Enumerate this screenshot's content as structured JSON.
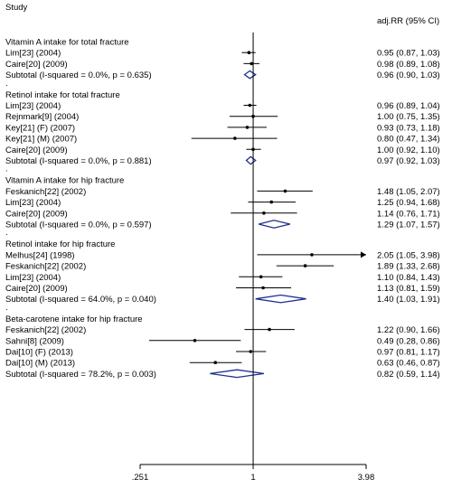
{
  "chart_data": {
    "type": "forest",
    "header_left": "Study",
    "header_right": "adj.RR (95% CI)",
    "x_scale": "log",
    "x_range": [
      0.251,
      3.98
    ],
    "x_ticks": [
      ".251",
      "1",
      "3.98"
    ],
    "null_line": 1,
    "groups": [
      {
        "title": "Vitamin A intake for total fracture",
        "studies": [
          {
            "label": "Lim[23] (2004)",
            "rr": 0.95,
            "lo": 0.87,
            "hi": 1.03,
            "text": "0.95 (0.87, 1.03)"
          },
          {
            "label": "Caire[20] (2009)",
            "rr": 0.98,
            "lo": 0.89,
            "hi": 1.08,
            "text": "0.98 (0.89, 1.08)"
          }
        ],
        "subtotal": {
          "label": "Subtotal  (I-squared = 0.0%, p = 0.635)",
          "rr": 0.96,
          "lo": 0.9,
          "hi": 1.03,
          "text": "0.96 (0.90, 1.03)"
        }
      },
      {
        "title": "Retinol intake for total fracture",
        "studies": [
          {
            "label": "Lim[23] (2004)",
            "rr": 0.96,
            "lo": 0.89,
            "hi": 1.04,
            "text": "0.96 (0.89, 1.04)"
          },
          {
            "label": "Rejnmark[9] (2004)",
            "rr": 1.0,
            "lo": 0.75,
            "hi": 1.35,
            "text": "1.00 (0.75, 1.35)"
          },
          {
            "label": "Key[21] (F) (2007)",
            "rr": 0.93,
            "lo": 0.73,
            "hi": 1.18,
            "text": "0.93 (0.73, 1.18)"
          },
          {
            "label": "Key[21] (M) (2007)",
            "rr": 0.8,
            "lo": 0.47,
            "hi": 1.34,
            "text": "0.80 (0.47, 1.34)"
          },
          {
            "label": "Caire[20] (2009)",
            "rr": 1.0,
            "lo": 0.92,
            "hi": 1.1,
            "text": "1.00 (0.92, 1.10)"
          }
        ],
        "subtotal": {
          "label": "Subtotal  (I-squared = 0.0%, p = 0.881)",
          "rr": 0.97,
          "lo": 0.92,
          "hi": 1.03,
          "text": "0.97 (0.92, 1.03)"
        }
      },
      {
        "title": "Vitamin A intake for hip fracture",
        "studies": [
          {
            "label": "Feskanich[22] (2002)",
            "rr": 1.48,
            "lo": 1.05,
            "hi": 2.07,
            "text": "1.48 (1.05, 2.07)"
          },
          {
            "label": "Lim[23] (2004)",
            "rr": 1.25,
            "lo": 0.94,
            "hi": 1.68,
            "text": "1.25 (0.94, 1.68)"
          },
          {
            "label": "Caire[20] (2009)",
            "rr": 1.14,
            "lo": 0.76,
            "hi": 1.71,
            "text": "1.14 (0.76, 1.71)"
          }
        ],
        "subtotal": {
          "label": "Subtotal  (I-squared = 0.0%, p = 0.597)",
          "rr": 1.29,
          "lo": 1.07,
          "hi": 1.57,
          "text": "1.29 (1.07, 1.57)"
        }
      },
      {
        "title": "Retinol intake for hip fracture",
        "studies": [
          {
            "label": "Melhus[24] (1998)",
            "rr": 2.05,
            "lo": 1.05,
            "hi": 3.98,
            "text": "2.05 (1.05, 3.98)",
            "arrow": true
          },
          {
            "label": "Feskanich[22] (2002)",
            "rr": 1.89,
            "lo": 1.33,
            "hi": 2.68,
            "text": "1.89 (1.33, 2.68)"
          },
          {
            "label": "Lim[23] (2004)",
            "rr": 1.1,
            "lo": 0.84,
            "hi": 1.43,
            "text": "1.10 (0.84, 1.43)"
          },
          {
            "label": "Caire[20] (2009)",
            "rr": 1.13,
            "lo": 0.81,
            "hi": 1.59,
            "text": "1.13 (0.81, 1.59)"
          }
        ],
        "subtotal": {
          "label": "Subtotal  (I-squared = 64.0%, p = 0.040)",
          "rr": 1.4,
          "lo": 1.03,
          "hi": 1.91,
          "text": "1.40 (1.03, 1.91)"
        }
      },
      {
        "title": "Beta-carotene intake for hip fracture",
        "studies": [
          {
            "label": "Feskanich[22] (2002)",
            "rr": 1.22,
            "lo": 0.9,
            "hi": 1.66,
            "text": "1.22 (0.90, 1.66)"
          },
          {
            "label": "Sahni[8] (2009)",
            "rr": 0.49,
            "lo": 0.28,
            "hi": 0.86,
            "text": "0.49 (0.28, 0.86)"
          },
          {
            "label": "Dai[10] (F) (2013)",
            "rr": 0.97,
            "lo": 0.81,
            "hi": 1.17,
            "text": "0.97 (0.81, 1.17)"
          },
          {
            "label": "Dai[10] (M) (2013)",
            "rr": 0.63,
            "lo": 0.46,
            "hi": 0.87,
            "text": "0.63 (0.46, 0.87)"
          }
        ],
        "subtotal": {
          "label": "Subtotal  (I-squared = 78.2%, p = 0.003)",
          "rr": 0.82,
          "lo": 0.59,
          "hi": 1.14,
          "text": "0.82 (0.59, 1.14)"
        }
      }
    ],
    "colors": {
      "ink": "#000000",
      "diamond": "#1f2f8f"
    }
  }
}
